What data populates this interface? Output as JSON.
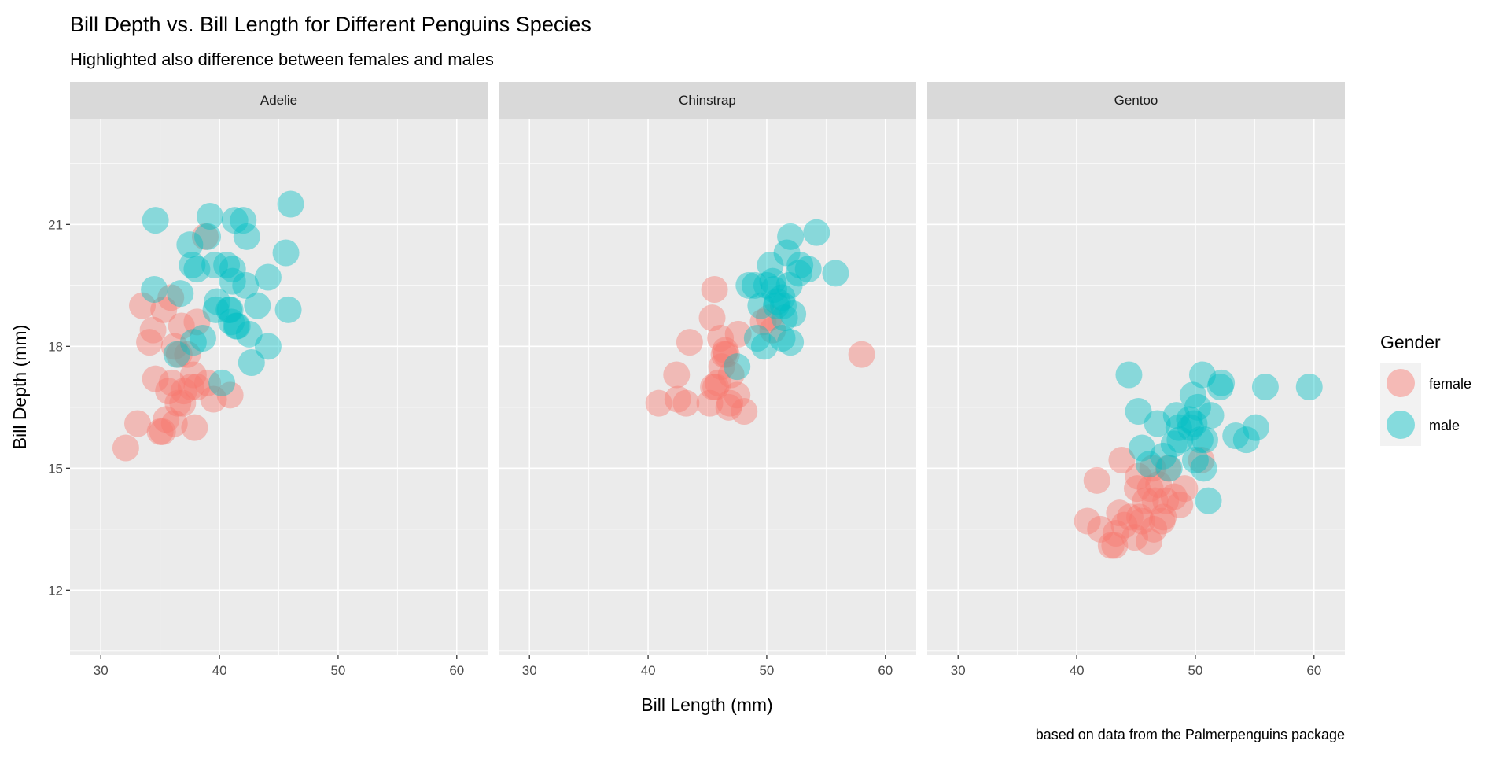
{
  "chart_data": {
    "type": "scatter",
    "title": "Bill Depth vs. Bill Length for Different Penguins Species",
    "subtitle": "Highlighted also difference between females and males",
    "caption": "based on data from the Palmerpenguins package",
    "xlabel": "Bill Length (mm)",
    "ylabel": "Bill Depth (mm)",
    "xlim": [
      27.4,
      62.6
    ],
    "ylim": [
      10.4,
      23.6
    ],
    "xticks": [
      30,
      40,
      50,
      60
    ],
    "yticks": [
      12,
      15,
      18,
      21
    ],
    "grid": true,
    "legend": {
      "title": "Gender",
      "position": "right",
      "entries": [
        "female",
        "male"
      ]
    },
    "colors": {
      "female": "#F8766D",
      "male": "#00BFC4",
      "panel_bg": "#EBEBEB",
      "strip_bg": "#D9D9D9"
    },
    "facets": [
      {
        "name": "Adelie",
        "series": [
          {
            "name": "female",
            "points": [
              [
                32.1,
                15.5
              ],
              [
                33.1,
                16.1
              ],
              [
                35.0,
                15.9
              ],
              [
                33.5,
                19.0
              ],
              [
                34.4,
                18.4
              ],
              [
                35.9,
                19.2
              ],
              [
                38.8,
                20.7
              ],
              [
                35.3,
                18.9
              ],
              [
                36.2,
                18.0
              ],
              [
                34.6,
                17.2
              ],
              [
                36.0,
                17.1
              ],
              [
                37.0,
                16.9
              ],
              [
                36.6,
                17.8
              ],
              [
                35.7,
                16.9
              ],
              [
                37.6,
                17.0
              ],
              [
                36.2,
                16.1
              ],
              [
                38.1,
                17.0
              ],
              [
                37.9,
                16.0
              ],
              [
                37.8,
                17.3
              ],
              [
                40.9,
                16.8
              ],
              [
                39.5,
                16.7
              ],
              [
                39.0,
                17.1
              ],
              [
                36.5,
                16.6
              ],
              [
                35.5,
                16.2
              ],
              [
                38.1,
                18.6
              ],
              [
                36.8,
                18.5
              ],
              [
                34.1,
                18.1
              ],
              [
                37.3,
                17.8
              ],
              [
                36.9,
                16.6
              ],
              [
                35.2,
                15.9
              ]
            ]
          },
          {
            "name": "male",
            "points": [
              [
                34.6,
                21.1
              ],
              [
                39.2,
                21.2
              ],
              [
                41.3,
                21.1
              ],
              [
                42.0,
                21.1
              ],
              [
                46.0,
                21.5
              ],
              [
                39.0,
                20.7
              ],
              [
                42.3,
                20.7
              ],
              [
                37.5,
                20.5
              ],
              [
                40.6,
                20.0
              ],
              [
                45.6,
                20.3
              ],
              [
                41.1,
                19.9
              ],
              [
                38.1,
                19.9
              ],
              [
                37.7,
                20.0
              ],
              [
                39.6,
                20.0
              ],
              [
                44.1,
                19.7
              ],
              [
                34.5,
                19.4
              ],
              [
                36.7,
                19.3
              ],
              [
                42.2,
                19.5
              ],
              [
                41.1,
                19.6
              ],
              [
                40.8,
                18.9
              ],
              [
                45.8,
                18.9
              ],
              [
                43.2,
                19.0
              ],
              [
                39.8,
                19.1
              ],
              [
                41.5,
                18.5
              ],
              [
                42.5,
                18.3
              ],
              [
                44.1,
                18.0
              ],
              [
                40.2,
                17.1
              ],
              [
                42.7,
                17.6
              ],
              [
                38.6,
                18.2
              ],
              [
                41.0,
                18.6
              ],
              [
                40.9,
                18.9
              ],
              [
                39.7,
                18.9
              ],
              [
                37.8,
                18.1
              ],
              [
                41.4,
                18.5
              ],
              [
                36.4,
                17.8
              ]
            ]
          }
        ]
      },
      {
        "name": "Chinstrap",
        "series": [
          {
            "name": "female",
            "points": [
              [
                40.9,
                16.6
              ],
              [
                42.4,
                17.3
              ],
              [
                43.2,
                16.6
              ],
              [
                42.5,
                16.7
              ],
              [
                43.5,
                18.1
              ],
              [
                45.4,
                18.7
              ],
              [
                46.1,
                18.2
              ],
              [
                45.9,
                17.1
              ],
              [
                46.4,
                17.8
              ],
              [
                46.5,
                17.9
              ],
              [
                45.6,
                19.4
              ],
              [
                46.6,
                17.8
              ],
              [
                47.0,
                17.3
              ],
              [
                46.9,
                16.6
              ],
              [
                45.2,
                16.6
              ],
              [
                46.2,
                17.5
              ],
              [
                45.7,
                17.0
              ],
              [
                47.5,
                16.8
              ],
              [
                48.1,
                16.4
              ],
              [
                58.0,
                17.8
              ],
              [
                49.7,
                18.6
              ],
              [
                50.5,
                18.4
              ],
              [
                50.2,
                18.7
              ],
              [
                45.5,
                17.0
              ],
              [
                46.8,
                16.5
              ],
              [
                47.6,
                18.3
              ]
            ]
          },
          {
            "name": "male",
            "points": [
              [
                50.0,
                19.5
              ],
              [
                51.3,
                19.2
              ],
              [
                52.7,
                19.8
              ],
              [
                51.3,
                18.2
              ],
              [
                52.0,
                18.1
              ],
              [
                50.5,
                19.6
              ],
              [
                49.2,
                18.2
              ],
              [
                52.0,
                20.7
              ],
              [
                54.2,
                20.8
              ],
              [
                51.9,
                19.5
              ],
              [
                55.8,
                19.8
              ],
              [
                53.5,
                19.9
              ],
              [
                49.0,
                19.5
              ],
              [
                50.8,
                19.0
              ],
              [
                50.9,
                19.1
              ],
              [
                51.5,
                18.7
              ],
              [
                49.5,
                19.0
              ],
              [
                52.2,
                18.8
              ],
              [
                50.3,
                20.0
              ],
              [
                50.6,
                19.4
              ],
              [
                51.7,
                20.3
              ],
              [
                52.8,
                20.0
              ],
              [
                47.5,
                17.5
              ],
              [
                49.8,
                18.0
              ],
              [
                48.5,
                19.5
              ],
              [
                51.4,
                19.0
              ]
            ]
          }
        ]
      },
      {
        "name": "Gentoo",
        "series": [
          {
            "name": "female",
            "points": [
              [
                46.1,
                13.2
              ],
              [
                41.7,
                14.7
              ],
              [
                43.3,
                13.4
              ],
              [
                40.9,
                13.7
              ],
              [
                42.0,
                13.5
              ],
              [
                43.2,
                13.1
              ],
              [
                44.5,
                13.8
              ],
              [
                45.1,
                14.5
              ],
              [
                46.5,
                13.5
              ],
              [
                44.9,
                13.3
              ],
              [
                45.5,
                13.7
              ],
              [
                46.2,
                14.5
              ],
              [
                47.2,
                13.7
              ],
              [
                46.4,
                15.0
              ],
              [
                47.5,
                14.2
              ],
              [
                48.2,
                14.3
              ],
              [
                43.6,
                13.9
              ],
              [
                45.3,
                13.8
              ],
              [
                44.0,
                13.6
              ],
              [
                45.8,
                14.2
              ],
              [
                49.1,
                14.5
              ],
              [
                42.9,
                13.1
              ],
              [
                43.8,
                15.2
              ],
              [
                46.9,
                14.6
              ],
              [
                48.7,
                14.1
              ],
              [
                47.3,
                13.8
              ],
              [
                45.2,
                14.8
              ],
              [
                46.6,
                14.2
              ],
              [
                47.7,
                15.0
              ],
              [
                50.5,
                15.2
              ]
            ]
          },
          {
            "name": "male",
            "points": [
              [
                44.4,
                17.3
              ],
              [
                50.6,
                17.3
              ],
              [
                52.2,
                17.1
              ],
              [
                55.9,
                17.0
              ],
              [
                59.6,
                17.0
              ],
              [
                45.2,
                16.4
              ],
              [
                49.8,
                16.8
              ],
              [
                48.7,
                15.7
              ],
              [
                50.0,
                15.2
              ],
              [
                51.1,
                14.2
              ],
              [
                46.1,
                15.1
              ],
              [
                47.8,
                15.0
              ],
              [
                48.6,
                16.0
              ],
              [
                49.5,
                16.2
              ],
              [
                50.7,
                15.0
              ],
              [
                54.3,
                15.7
              ],
              [
                55.1,
                16.0
              ],
              [
                53.4,
                15.8
              ],
              [
                49.6,
                16.0
              ],
              [
                50.4,
                15.7
              ],
              [
                51.3,
                16.3
              ],
              [
                48.4,
                16.3
              ],
              [
                47.3,
                15.3
              ],
              [
                46.8,
                16.1
              ],
              [
                45.5,
                15.5
              ],
              [
                49.9,
                16.1
              ],
              [
                50.8,
                15.7
              ],
              [
                52.1,
                17.0
              ],
              [
                50.2,
                16.5
              ],
              [
                48.2,
                15.6
              ]
            ]
          }
        ]
      }
    ]
  }
}
